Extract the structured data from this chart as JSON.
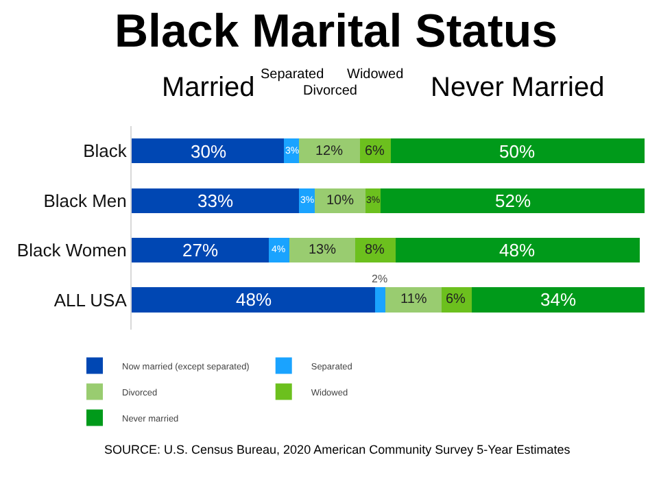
{
  "chart_data": {
    "type": "bar",
    "orientation": "horizontal",
    "stacked": true,
    "tick_labels": "y",
    "legend": "bottom",
    "title": "Black Marital Status",
    "categories": [
      "Black",
      "Black Men",
      "Black Women",
      "ALL USA"
    ],
    "series": [
      {
        "name": "Now married (except separated)",
        "color": "#0047b3",
        "values": [
          30,
          33,
          27,
          48
        ],
        "value_labels": [
          "30%",
          "33%",
          "27%",
          "48%"
        ]
      },
      {
        "name": "Separated",
        "color": "#1aa3ff",
        "values": [
          3,
          3,
          4,
          2
        ],
        "value_labels": [
          "3%",
          "3%",
          "4%",
          "2%"
        ]
      },
      {
        "name": "Divorced",
        "color": "#99cc70",
        "values": [
          12,
          10,
          13,
          11
        ],
        "value_labels": [
          "12%",
          "10%",
          "13%",
          "11%"
        ]
      },
      {
        "name": "Widowed",
        "color": "#6cc01e",
        "values": [
          6,
          3,
          8,
          6
        ],
        "value_labels": [
          "6%",
          "3%",
          "8%",
          "6%"
        ]
      },
      {
        "name": "Never married",
        "color": "#009a1a",
        "values": [
          50,
          52,
          48,
          34
        ],
        "value_labels": [
          "50%",
          "52%",
          "48%",
          "34%"
        ]
      }
    ],
    "annotations": [
      "Married",
      "Separated",
      "Divorced",
      "Widowed",
      "Never Married",
      "SOURCE: U.S. Census Bureau, 2020 American Community Survey 5-Year Estimates"
    ]
  }
}
